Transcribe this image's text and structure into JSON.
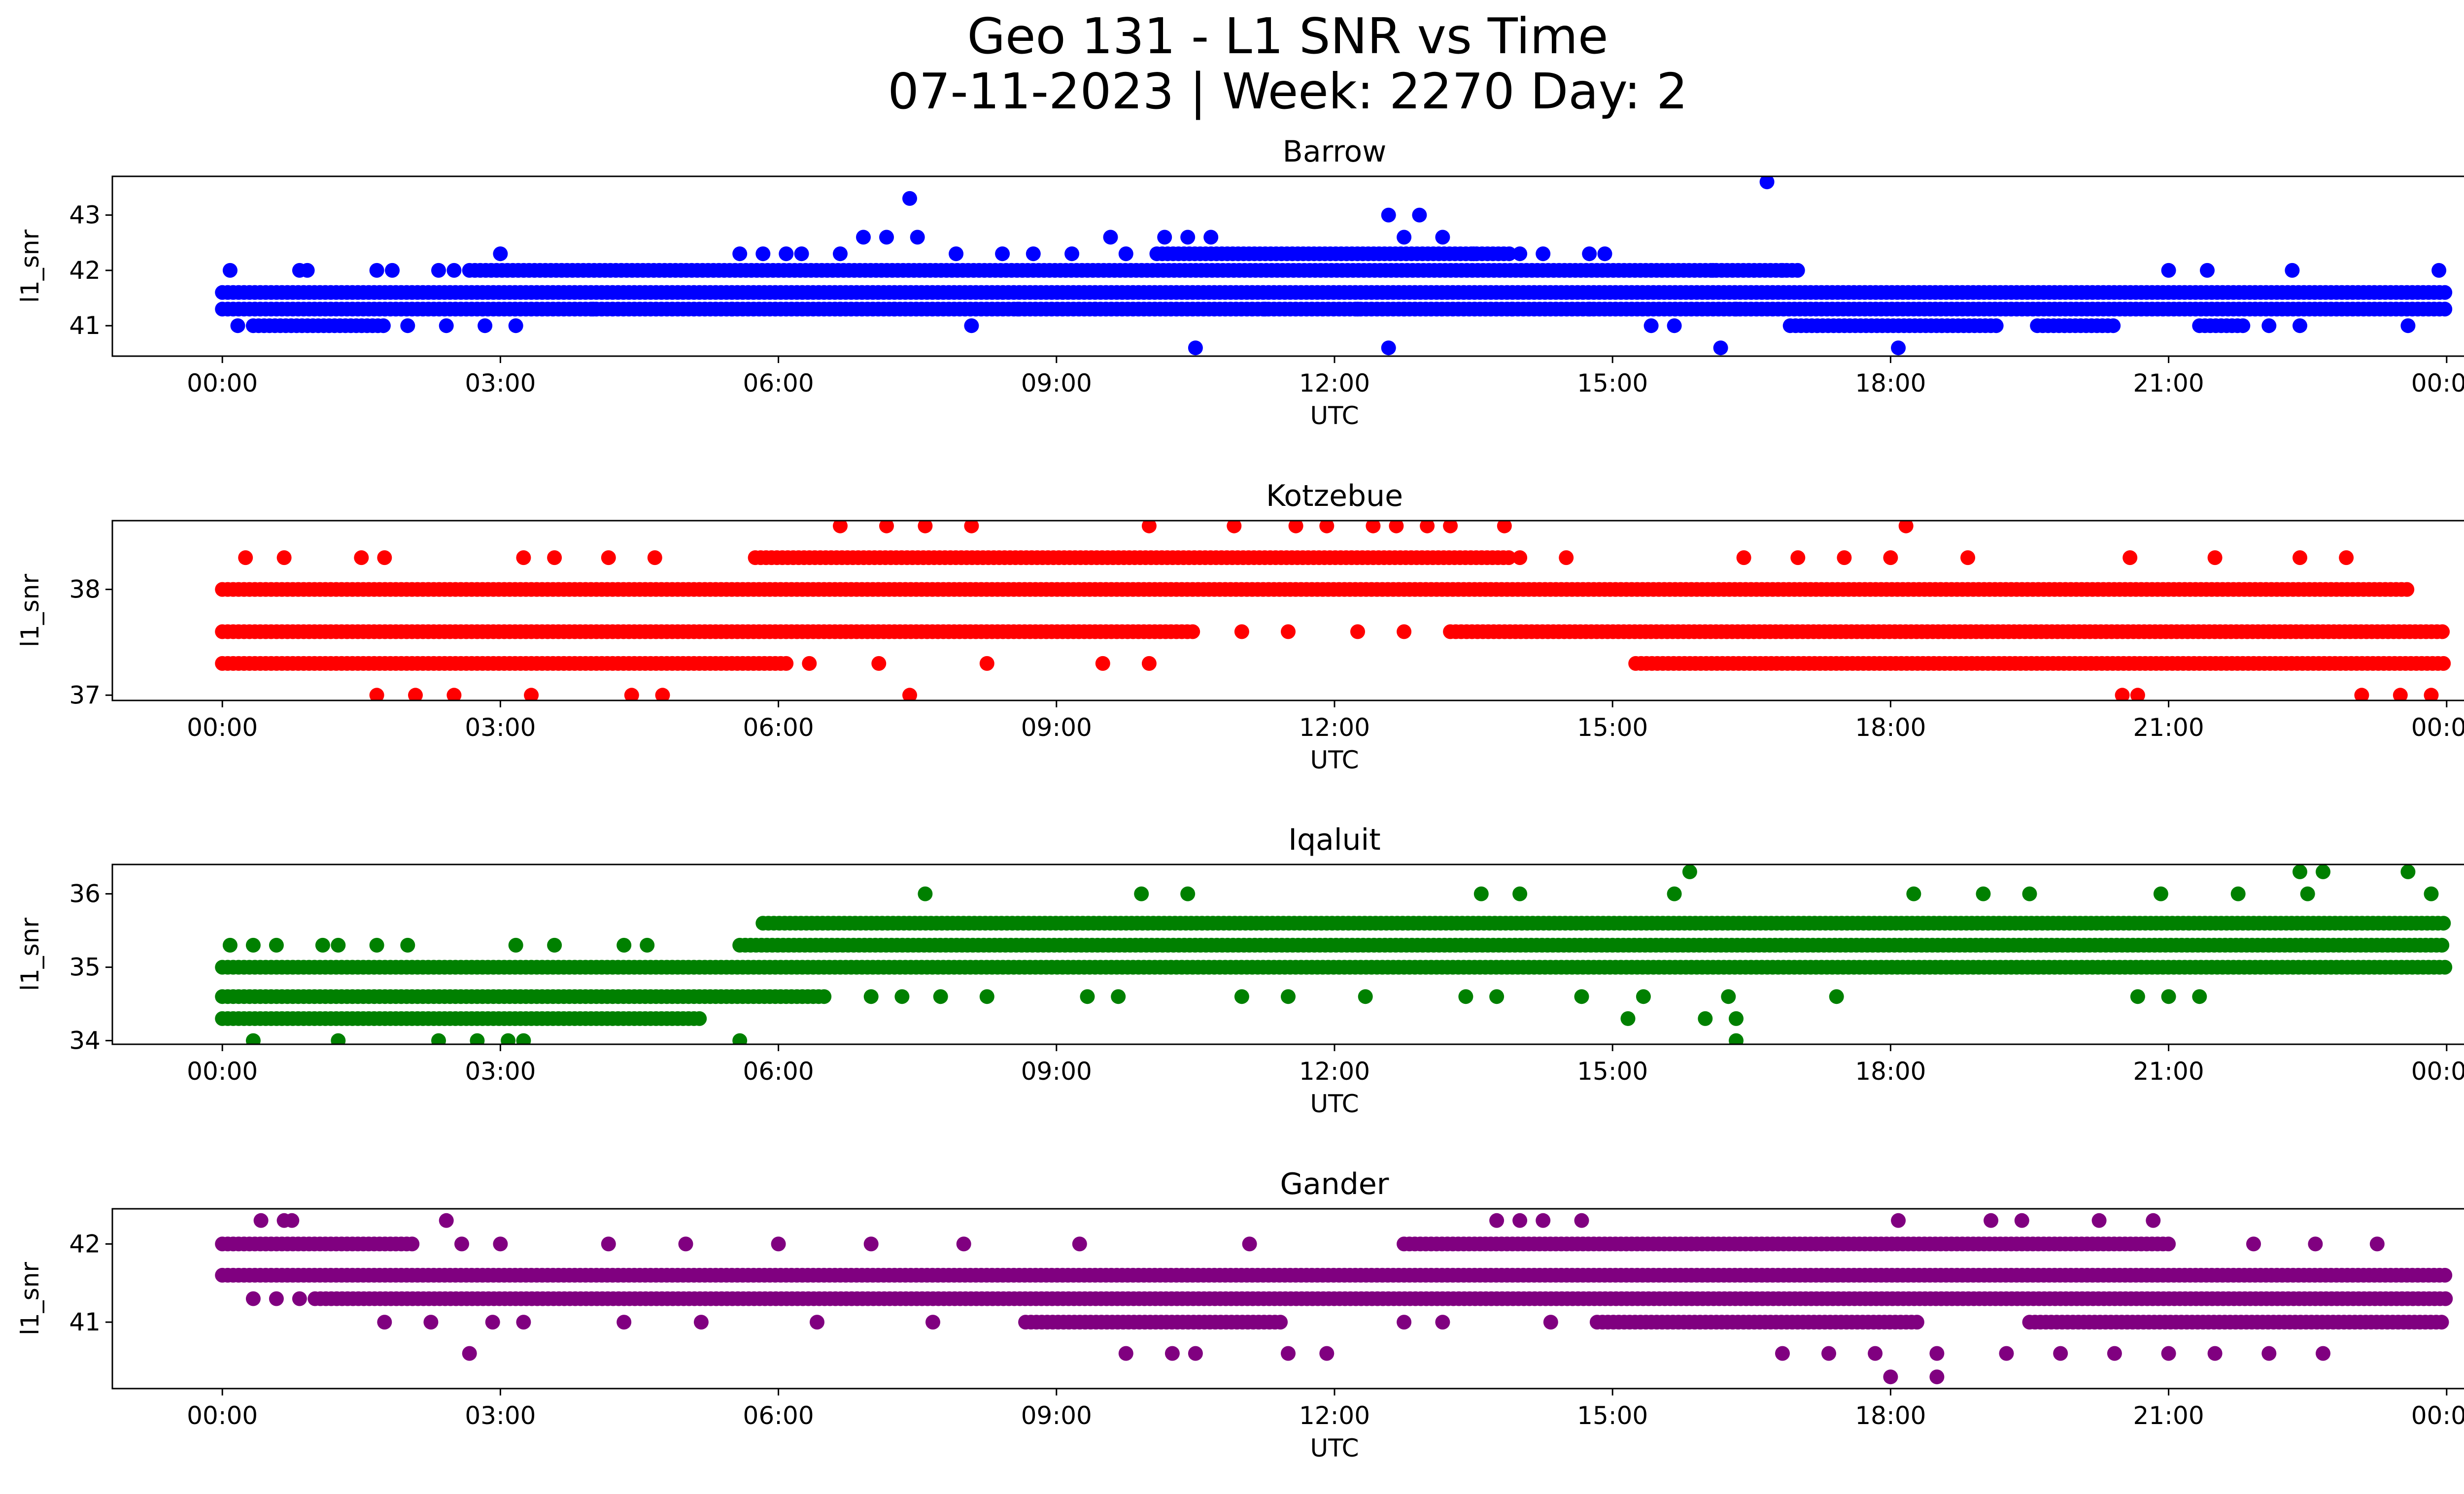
{
  "title_line1": "Geo 131 - L1 SNR vs Time",
  "title_line2": "07-11-2023 | Week: 2270 Day: 2",
  "chart_data": [
    {
      "type": "scatter",
      "title": "Barrow",
      "xlabel": "UTC",
      "ylabel": "l1_snr",
      "color": "#0000ff",
      "xlim": [
        "00:00",
        "24:00"
      ],
      "ylim": [
        40.45,
        43.7
      ],
      "x_ticks": [
        "00:00",
        "03:00",
        "06:00",
        "09:00",
        "12:00",
        "15:00",
        "18:00",
        "21:00",
        "00:00"
      ],
      "y_ticks": [
        41,
        42,
        43
      ],
      "bands": [
        {
          "value": 41.3,
          "ranges": [
            [
              "00:00",
              "24:00"
            ]
          ]
        },
        {
          "value": 41.6,
          "ranges": [
            [
              "00:00",
              "24:00"
            ]
          ]
        },
        {
          "value": 42.0,
          "ranges": [
            [
              "02:40",
              "17:00"
            ]
          ]
        },
        {
          "value": 42.3,
          "ranges": [
            [
              "10:05",
              "13:55"
            ]
          ]
        },
        {
          "value": 41.0,
          "ranges": [
            [
              "00:20",
              "01:45"
            ],
            [
              "16:55",
              "19:10"
            ],
            [
              "19:35",
              "20:25"
            ],
            [
              "21:20",
              "21:50"
            ]
          ]
        }
      ],
      "points": [
        [
          "00:05",
          42.0
        ],
        [
          "00:50",
          42.0
        ],
        [
          "00:55",
          42.0
        ],
        [
          "01:40",
          42.0
        ],
        [
          "01:50",
          42.0
        ],
        [
          "02:20",
          42.0
        ],
        [
          "02:30",
          42.0
        ],
        [
          "03:00",
          42.3
        ],
        [
          "05:35",
          42.3
        ],
        [
          "05:50",
          42.3
        ],
        [
          "06:05",
          42.3
        ],
        [
          "06:15",
          42.3
        ],
        [
          "06:40",
          42.3
        ],
        [
          "06:55",
          42.6
        ],
        [
          "07:10",
          42.6
        ],
        [
          "07:25",
          43.3
        ],
        [
          "07:30",
          42.6
        ],
        [
          "07:55",
          42.3
        ],
        [
          "08:25",
          42.3
        ],
        [
          "08:45",
          42.3
        ],
        [
          "09:10",
          42.3
        ],
        [
          "09:35",
          42.6
        ],
        [
          "09:45",
          42.3
        ],
        [
          "10:10",
          42.6
        ],
        [
          "10:25",
          42.6
        ],
        [
          "10:40",
          42.6
        ],
        [
          "12:35",
          43.0
        ],
        [
          "12:45",
          42.6
        ],
        [
          "12:55",
          43.0
        ],
        [
          "13:10",
          42.6
        ],
        [
          "13:30",
          42.3
        ],
        [
          "14:00",
          42.3
        ],
        [
          "14:15",
          42.3
        ],
        [
          "14:45",
          42.3
        ],
        [
          "14:55",
          42.3
        ],
        [
          "16:05",
          42.0
        ],
        [
          "16:40",
          43.6
        ],
        [
          "16:50",
          42.0
        ],
        [
          "21:00",
          42.0
        ],
        [
          "21:25",
          42.0
        ],
        [
          "22:20",
          42.0
        ],
        [
          "23:55",
          42.0
        ],
        [
          "00:10",
          41.0
        ],
        [
          "02:00",
          41.0
        ],
        [
          "02:25",
          41.0
        ],
        [
          "02:50",
          41.0
        ],
        [
          "03:10",
          41.0
        ],
        [
          "08:05",
          41.0
        ],
        [
          "10:30",
          40.6
        ],
        [
          "12:35",
          40.6
        ],
        [
          "15:25",
          41.0
        ],
        [
          "15:40",
          41.0
        ],
        [
          "16:10",
          40.6
        ],
        [
          "18:05",
          40.6
        ],
        [
          "22:05",
          41.0
        ],
        [
          "22:25",
          41.0
        ],
        [
          "23:35",
          41.0
        ],
        [
          "04:00",
          41.3
        ],
        [
          "05:30",
          41.3
        ],
        [
          "06:40",
          41.3
        ],
        [
          "07:15",
          41.3
        ],
        [
          "08:35",
          41.3
        ],
        [
          "09:25",
          41.3
        ],
        [
          "11:15",
          41.3
        ],
        [
          "12:15",
          41.3
        ],
        [
          "12:45",
          41.3
        ],
        [
          "13:55",
          41.3
        ],
        [
          "14:45",
          41.3
        ],
        [
          "16:20",
          41.3
        ]
      ]
    },
    {
      "type": "scatter",
      "title": "Kotzebue",
      "xlabel": "UTC",
      "ylabel": "l1_snr",
      "color": "#ff0000",
      "xlim": [
        "00:00",
        "24:00"
      ],
      "ylim": [
        36.95,
        38.65
      ],
      "x_ticks": [
        "00:00",
        "03:00",
        "06:00",
        "09:00",
        "12:00",
        "15:00",
        "18:00",
        "21:00",
        "00:00"
      ],
      "y_ticks": [
        37,
        38
      ],
      "bands": [
        {
          "value": 38.0,
          "ranges": [
            [
              "00:00",
              "23:35"
            ]
          ]
        },
        {
          "value": 37.6,
          "ranges": [
            [
              "00:00",
              "10:30"
            ],
            [
              "13:15",
              "24:00"
            ]
          ]
        },
        {
          "value": 37.3,
          "ranges": [
            [
              "00:00",
              "06:05"
            ],
            [
              "15:15",
              "24:00"
            ]
          ]
        },
        {
          "value": 38.3,
          "ranges": [
            [
              "05:45",
              "13:55"
            ]
          ]
        }
      ],
      "points": [
        [
          "00:15",
          38.3
        ],
        [
          "00:40",
          38.3
        ],
        [
          "01:30",
          38.3
        ],
        [
          "01:45",
          38.3
        ],
        [
          "03:15",
          38.3
        ],
        [
          "03:35",
          38.3
        ],
        [
          "04:10",
          38.3
        ],
        [
          "04:40",
          38.3
        ],
        [
          "06:40",
          38.6
        ],
        [
          "07:10",
          38.6
        ],
        [
          "07:35",
          38.6
        ],
        [
          "08:05",
          38.6
        ],
        [
          "10:00",
          38.6
        ],
        [
          "10:55",
          38.6
        ],
        [
          "11:35",
          38.6
        ],
        [
          "11:55",
          38.6
        ],
        [
          "12:25",
          38.6
        ],
        [
          "12:40",
          38.6
        ],
        [
          "13:00",
          38.6
        ],
        [
          "13:15",
          38.6
        ],
        [
          "13:50",
          38.6
        ],
        [
          "18:10",
          38.6
        ],
        [
          "14:00",
          38.3
        ],
        [
          "14:30",
          38.3
        ],
        [
          "16:25",
          38.3
        ],
        [
          "17:00",
          38.3
        ],
        [
          "17:30",
          38.3
        ],
        [
          "18:00",
          38.3
        ],
        [
          "18:50",
          38.3
        ],
        [
          "20:35",
          38.3
        ],
        [
          "21:30",
          38.3
        ],
        [
          "22:25",
          38.3
        ],
        [
          "22:55",
          38.3
        ],
        [
          "11:00",
          37.6
        ],
        [
          "11:30",
          37.6
        ],
        [
          "12:15",
          37.6
        ],
        [
          "12:45",
          37.6
        ],
        [
          "06:20",
          37.3
        ],
        [
          "07:05",
          37.3
        ],
        [
          "08:15",
          37.3
        ],
        [
          "09:30",
          37.3
        ],
        [
          "10:00",
          37.3
        ],
        [
          "01:40",
          37.0
        ],
        [
          "02:05",
          37.0
        ],
        [
          "02:30",
          37.0
        ],
        [
          "03:20",
          37.0
        ],
        [
          "04:25",
          37.0
        ],
        [
          "04:45",
          37.0
        ],
        [
          "07:25",
          37.0
        ],
        [
          "20:30",
          37.0
        ],
        [
          "20:40",
          37.0
        ],
        [
          "23:05",
          37.0
        ],
        [
          "23:30",
          37.0
        ],
        [
          "23:50",
          37.0
        ]
      ]
    },
    {
      "type": "scatter",
      "title": "Iqaluit",
      "xlabel": "UTC",
      "ylabel": "l1_snr",
      "color": "#008000",
      "xlim": [
        "00:00",
        "24:00"
      ],
      "ylim": [
        33.95,
        36.4
      ],
      "x_ticks": [
        "00:00",
        "03:00",
        "06:00",
        "09:00",
        "12:00",
        "15:00",
        "18:00",
        "21:00",
        "00:00"
      ],
      "y_ticks": [
        34,
        35,
        36
      ],
      "bands": [
        {
          "value": 35.0,
          "ranges": [
            [
              "00:00",
              "24:00"
            ]
          ]
        },
        {
          "value": 35.3,
          "ranges": [
            [
              "05:35",
              "24:00"
            ]
          ]
        },
        {
          "value": 35.6,
          "ranges": [
            [
              "05:50",
              "24:00"
            ]
          ]
        },
        {
          "value": 34.6,
          "ranges": [
            [
              "00:00",
              "06:30"
            ]
          ]
        },
        {
          "value": 34.3,
          "ranges": [
            [
              "00:00",
              "05:10"
            ]
          ]
        }
      ],
      "points": [
        [
          "00:05",
          35.3
        ],
        [
          "00:20",
          35.3
        ],
        [
          "00:35",
          35.3
        ],
        [
          "01:05",
          35.3
        ],
        [
          "01:15",
          35.3
        ],
        [
          "01:40",
          35.3
        ],
        [
          "02:00",
          35.3
        ],
        [
          "03:10",
          35.3
        ],
        [
          "03:35",
          35.3
        ],
        [
          "04:20",
          35.3
        ],
        [
          "04:35",
          35.3
        ],
        [
          "07:35",
          36.0
        ],
        [
          "09:55",
          36.0
        ],
        [
          "10:25",
          36.0
        ],
        [
          "13:35",
          36.0
        ],
        [
          "14:00",
          36.0
        ],
        [
          "15:40",
          36.0
        ],
        [
          "15:50",
          36.3
        ],
        [
          "18:15",
          36.0
        ],
        [
          "19:00",
          36.0
        ],
        [
          "19:30",
          36.0
        ],
        [
          "20:55",
          36.0
        ],
        [
          "22:25",
          36.3
        ],
        [
          "22:40",
          36.3
        ],
        [
          "23:35",
          36.3
        ],
        [
          "21:45",
          36.0
        ],
        [
          "22:30",
          36.0
        ],
        [
          "23:50",
          36.0
        ],
        [
          "07:00",
          34.6
        ],
        [
          "07:20",
          34.6
        ],
        [
          "07:45",
          34.6
        ],
        [
          "08:15",
          34.6
        ],
        [
          "09:20",
          34.6
        ],
        [
          "09:40",
          34.6
        ],
        [
          "11:00",
          34.6
        ],
        [
          "11:30",
          34.6
        ],
        [
          "12:20",
          34.6
        ],
        [
          "13:25",
          34.6
        ],
        [
          "13:45",
          34.6
        ],
        [
          "14:40",
          34.6
        ],
        [
          "15:20",
          34.6
        ],
        [
          "16:15",
          34.6
        ],
        [
          "17:25",
          34.6
        ],
        [
          "20:40",
          34.6
        ],
        [
          "21:00",
          34.6
        ],
        [
          "21:20",
          34.6
        ],
        [
          "15:10",
          34.3
        ],
        [
          "16:00",
          34.3
        ],
        [
          "16:20",
          34.3
        ],
        [
          "00:20",
          34.0
        ],
        [
          "01:15",
          34.0
        ],
        [
          "02:20",
          34.0
        ],
        [
          "02:45",
          34.0
        ],
        [
          "03:05",
          34.0
        ],
        [
          "03:15",
          34.0
        ],
        [
          "05:35",
          34.0
        ],
        [
          "16:20",
          34.0
        ]
      ]
    },
    {
      "type": "scatter",
      "title": "Gander",
      "xlabel": "UTC",
      "ylabel": "l1_snr",
      "color": "#800080",
      "xlim": [
        "00:00",
        "24:00"
      ],
      "ylim": [
        40.15,
        42.45
      ],
      "x_ticks": [
        "00:00",
        "03:00",
        "06:00",
        "09:00",
        "12:00",
        "15:00",
        "18:00",
        "21:00",
        "00:00"
      ],
      "y_ticks": [
        41,
        42
      ],
      "bands": [
        {
          "value": 41.6,
          "ranges": [
            [
              "00:00",
              "24:00"
            ]
          ]
        },
        {
          "value": 41.3,
          "ranges": [
            [
              "01:00",
              "24:00"
            ]
          ]
        },
        {
          "value": 42.0,
          "ranges": [
            [
              "00:00",
              "02:05"
            ],
            [
              "12:45",
              "21:00"
            ]
          ]
        },
        {
          "value": 41.0,
          "ranges": [
            [
              "08:40",
              "11:25"
            ],
            [
              "14:50",
              "18:20"
            ],
            [
              "19:30",
              "24:00"
            ]
          ]
        }
      ],
      "points": [
        [
          "00:25",
          42.3
        ],
        [
          "00:40",
          42.3
        ],
        [
          "00:45",
          42.3
        ],
        [
          "02:25",
          42.3
        ],
        [
          "13:45",
          42.3
        ],
        [
          "14:00",
          42.3
        ],
        [
          "14:15",
          42.3
        ],
        [
          "14:40",
          42.3
        ],
        [
          "18:05",
          42.3
        ],
        [
          "19:05",
          42.3
        ],
        [
          "19:25",
          42.3
        ],
        [
          "20:15",
          42.3
        ],
        [
          "20:50",
          42.3
        ],
        [
          "02:35",
          42.0
        ],
        [
          "03:00",
          42.0
        ],
        [
          "04:10",
          42.0
        ],
        [
          "05:00",
          42.0
        ],
        [
          "06:00",
          42.0
        ],
        [
          "07:00",
          42.0
        ],
        [
          "08:00",
          42.0
        ],
        [
          "09:15",
          42.0
        ],
        [
          "11:05",
          42.0
        ],
        [
          "21:55",
          42.0
        ],
        [
          "22:35",
          42.0
        ],
        [
          "23:15",
          42.0
        ],
        [
          "00:20",
          41.3
        ],
        [
          "00:35",
          41.3
        ],
        [
          "00:50",
          41.3
        ],
        [
          "01:45",
          41.0
        ],
        [
          "02:15",
          41.0
        ],
        [
          "02:55",
          41.0
        ],
        [
          "03:15",
          41.0
        ],
        [
          "04:20",
          41.0
        ],
        [
          "05:10",
          41.0
        ],
        [
          "06:25",
          41.0
        ],
        [
          "07:40",
          41.0
        ],
        [
          "12:45",
          41.0
        ],
        [
          "13:10",
          41.0
        ],
        [
          "14:20",
          41.0
        ],
        [
          "02:40",
          40.6
        ],
        [
          "09:45",
          40.6
        ],
        [
          "10:15",
          40.6
        ],
        [
          "10:30",
          40.6
        ],
        [
          "11:30",
          40.6
        ],
        [
          "11:55",
          40.6
        ],
        [
          "16:50",
          40.6
        ],
        [
          "17:20",
          40.6
        ],
        [
          "17:50",
          40.6
        ],
        [
          "18:30",
          40.6
        ],
        [
          "19:15",
          40.6
        ],
        [
          "19:50",
          40.6
        ],
        [
          "20:25",
          40.6
        ],
        [
          "21:00",
          40.6
        ],
        [
          "21:30",
          40.6
        ],
        [
          "22:05",
          40.6
        ],
        [
          "22:40",
          40.6
        ],
        [
          "18:00",
          40.3
        ],
        [
          "18:30",
          40.3
        ]
      ]
    }
  ]
}
